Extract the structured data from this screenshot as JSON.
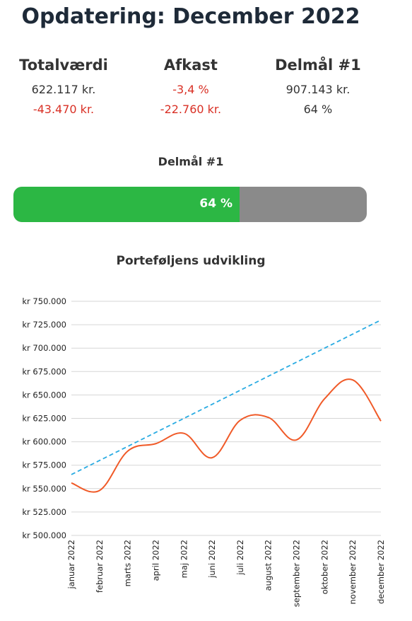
{
  "title": "Opdatering: December 2022",
  "stats": [
    {
      "header": "Totalværdi",
      "line1": "622.117 kr.",
      "line1_color": "#333333",
      "line2": "-43.470 kr.",
      "line2_color": "#d93025"
    },
    {
      "header": "Afkast",
      "line1": "-3,4 %",
      "line1_color": "#d93025",
      "line2": "-22.760 kr.",
      "line2_color": "#d93025"
    },
    {
      "header": "Delmål #1",
      "line1": "907.143 kr.",
      "line1_color": "#333333",
      "line2": "64 %",
      "line2_color": "#333333"
    }
  ],
  "goal": {
    "title": "Delmål #1",
    "progress": 0.64,
    "label": "64 %",
    "fill_color": "#2cb744",
    "track_color": "#8a8a8a"
  },
  "chart_data": {
    "type": "line",
    "title": "Porteføljens udvikling",
    "categories": [
      "januar 2022",
      "februar 2022",
      "marts 2022",
      "april 2022",
      "maj 2022",
      "juni 2022",
      "juli 2022",
      "august 2022",
      "september 2022",
      "oktober 2022",
      "november 2022",
      "december 2022"
    ],
    "ylim": [
      500000,
      750000
    ],
    "y_ticks": [
      750000,
      725000,
      700000,
      675000,
      650000,
      625000,
      600000,
      575000,
      550000,
      525000,
      500000
    ],
    "y_tick_labels": [
      "kr 750.000",
      "kr 725.000",
      "kr 700.000",
      "kr 675.000",
      "kr 650.000",
      "kr 625.000",
      "kr 600.000",
      "kr 575.000",
      "kr 550.000",
      "kr 525.000",
      "kr 500.000"
    ],
    "grid": true,
    "series": [
      {
        "values": [
          556000,
          548000,
          590000,
          598000,
          609000,
          583000,
          623000,
          626000,
          602000,
          646000,
          666000,
          622117
        ],
        "color": "#f05a28",
        "style": "solid"
      },
      {
        "values": [
          565000,
          580000,
          595000,
          610000,
          625000,
          640000,
          655000,
          670000,
          685000,
          700000,
          715000,
          730000
        ],
        "color": "#29abe2",
        "style": "dashed"
      }
    ]
  }
}
